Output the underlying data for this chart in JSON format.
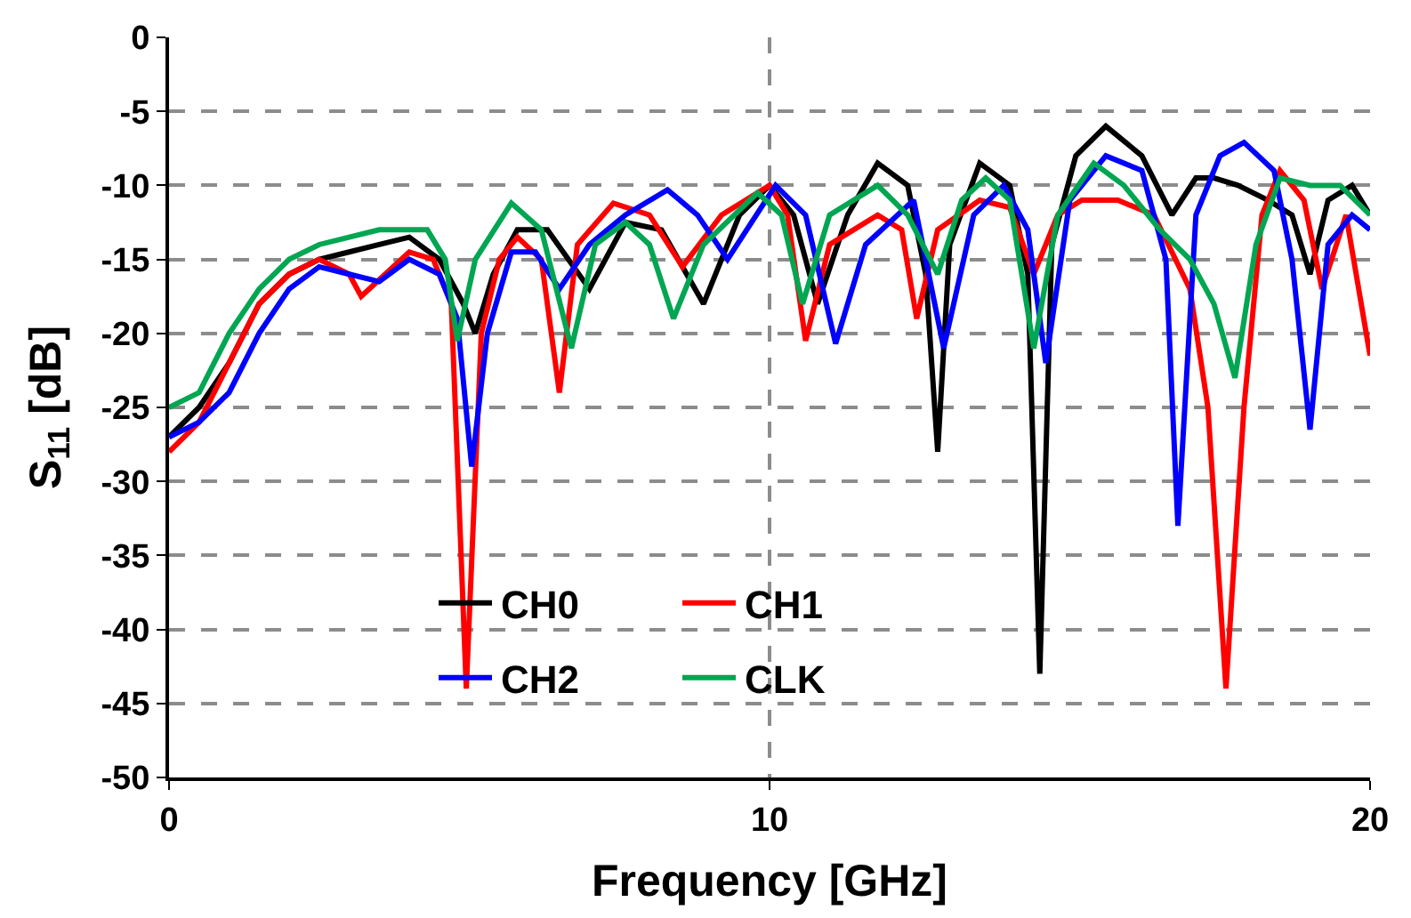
{
  "chart_data": {
    "type": "line",
    "xlabel": "Frequency [GHz]",
    "ylabel": "S$_{11}$ [dB]",
    "xlim": [
      0,
      20
    ],
    "xticks": [
      0,
      10,
      20
    ],
    "ylim": [
      -50,
      0
    ],
    "yticks": [
      -50,
      -45,
      -40,
      -35,
      -30,
      -25,
      -20,
      -15,
      -10,
      -5,
      0
    ],
    "grid": true,
    "legend": "bottom",
    "line_style": "solid",
    "marker": "none",
    "series": [
      {
        "name": "CH0",
        "color": "#000000",
        "x": [
          0,
          0.5,
          1,
          1.5,
          2,
          2.5,
          3,
          3.5,
          4,
          4.5,
          4.9,
          5.1,
          5.4,
          5.8,
          6.3,
          7.0,
          7.6,
          8.2,
          8.9,
          9.5,
          10,
          10.4,
          10.8,
          11.3,
          11.8,
          12.3,
          12.6,
          12.8,
          13.0,
          13.5,
          14.0,
          14.3,
          14.5,
          14.7,
          15.1,
          15.6,
          16.2,
          16.7,
          17.1,
          17.4,
          17.8,
          18.3,
          18.7,
          19.0,
          19.3,
          19.7,
          20
        ],
        "values": [
          -27,
          -25,
          -22,
          -18,
          -16,
          -15,
          -14.5,
          -14,
          -13.5,
          -15,
          -18,
          -20,
          -16,
          -13,
          -13,
          -17,
          -12.5,
          -13,
          -18,
          -12,
          -10,
          -12,
          -18,
          -12,
          -8.5,
          -10,
          -16,
          -28,
          -14,
          -8.5,
          -10,
          -16,
          -43,
          -14,
          -8,
          -6,
          -8,
          -12,
          -9.5,
          -9.5,
          -10,
          -11,
          -12,
          -16,
          -11,
          -10,
          -12
        ]
      },
      {
        "name": "CH1",
        "color": "#ff0000",
        "x": [
          0,
          0.5,
          1,
          1.5,
          2,
          2.5,
          3,
          3.2,
          3.6,
          4,
          4.4,
          4.7,
          4.95,
          5.2,
          5.5,
          5.8,
          6.2,
          6.5,
          6.8,
          7.4,
          8.0,
          8.55,
          9.2,
          10,
          10.3,
          10.6,
          11.0,
          11.8,
          12.2,
          12.45,
          12.8,
          13.5,
          14.0,
          14.4,
          14.8,
          15.2,
          15.8,
          16.4,
          17.0,
          17.3,
          17.6,
          17.9,
          18.2,
          18.5,
          18.9,
          19.2,
          19.6,
          20
        ],
        "values": [
          -28,
          -26,
          -22,
          -18,
          -16,
          -15,
          -16,
          -17.5,
          -16,
          -14.5,
          -15,
          -18,
          -44,
          -20,
          -15,
          -13.5,
          -15,
          -24,
          -14,
          -11.2,
          -12,
          -15.5,
          -12,
          -10,
          -12,
          -20.5,
          -14,
          -12,
          -13,
          -19,
          -13,
          -11,
          -11.5,
          -16,
          -12,
          -11,
          -11,
          -12,
          -17,
          -25,
          -44,
          -25,
          -12,
          -9,
          -11,
          -17,
          -12,
          -21.5
        ]
      },
      {
        "name": "CH2",
        "color": "#0000ff",
        "x": [
          0,
          0.5,
          1,
          1.5,
          2,
          2.5,
          3,
          3.5,
          4,
          4.5,
          4.8,
          5.04,
          5.3,
          5.7,
          6.1,
          6.5,
          7.0,
          7.6,
          8.3,
          8.8,
          9.3,
          10.1,
          10.6,
          11.1,
          11.6,
          12.4,
          12.9,
          13.4,
          13.9,
          14.3,
          14.6,
          15.0,
          15.6,
          16.2,
          16.6,
          16.8,
          17.1,
          17.5,
          17.9,
          18.4,
          18.7,
          19.0,
          19.3,
          19.7,
          20
        ],
        "values": [
          -27,
          -26,
          -24,
          -20,
          -17,
          -15.5,
          -16,
          -16.5,
          -15,
          -16,
          -19,
          -29,
          -20,
          -14.5,
          -14.5,
          -17,
          -14,
          -12,
          -10.3,
          -12,
          -15,
          -10,
          -12,
          -20.7,
          -14,
          -11,
          -21,
          -12,
          -10,
          -13,
          -22,
          -11,
          -8,
          -9,
          -15,
          -33,
          -12,
          -8,
          -7.1,
          -9,
          -15,
          -26.5,
          -14,
          -12,
          -13
        ]
      },
      {
        "name": "CLK",
        "color": "#00a651",
        "x": [
          0,
          0.5,
          1,
          1.5,
          2,
          2.5,
          3,
          3.5,
          4,
          4.3,
          4.6,
          4.8,
          5.1,
          5.7,
          6.2,
          6.7,
          7.1,
          7.6,
          8.0,
          8.4,
          8.9,
          9.8,
          10.2,
          10.55,
          11.0,
          11.8,
          12.3,
          12.8,
          13.2,
          13.6,
          14.0,
          14.4,
          14.8,
          15.4,
          15.9,
          16.5,
          17.0,
          17.4,
          17.75,
          18.1,
          18.5,
          19.0,
          19.5,
          20
        ],
        "values": [
          -25,
          -24,
          -20,
          -17,
          -15,
          -14,
          -13.5,
          -13,
          -13,
          -13,
          -15,
          -20.5,
          -15,
          -11.2,
          -13,
          -21,
          -14,
          -12.5,
          -14,
          -19,
          -14,
          -10.5,
          -12,
          -18,
          -12,
          -10,
          -12,
          -16,
          -11,
          -9.5,
          -11,
          -21,
          -12,
          -8.5,
          -10,
          -13,
          -15,
          -18,
          -23,
          -14,
          -9.5,
          -10,
          -10,
          -12
        ]
      }
    ]
  }
}
